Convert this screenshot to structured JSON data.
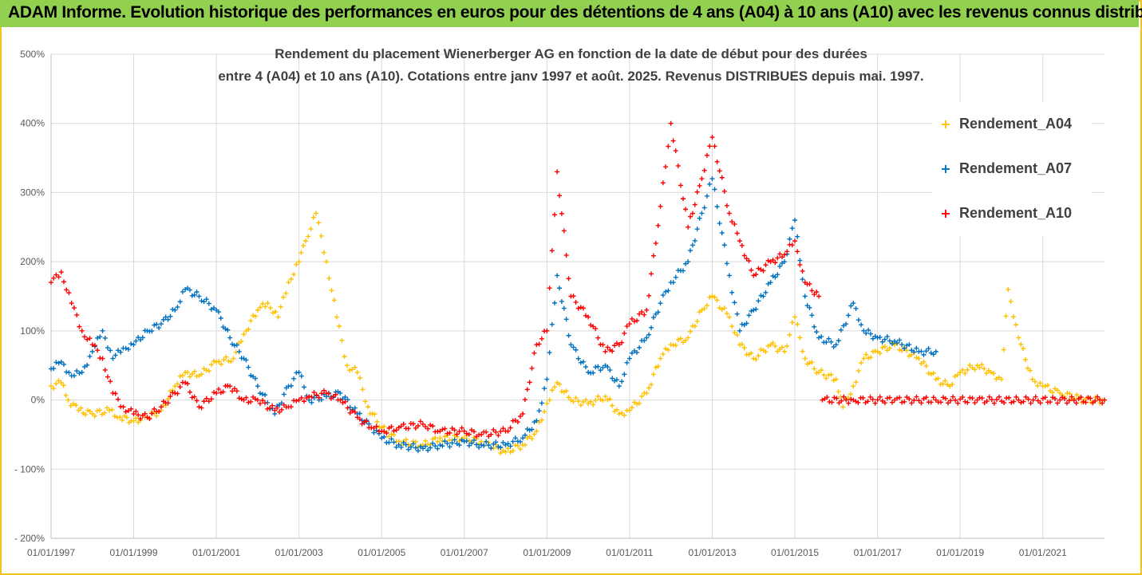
{
  "header": {
    "title": "ADAM Informe. Evolution historique des performances en euros pour des détentions de 4 ans (A04) à 10 ans (A10) avec les revenus connus distribués",
    "band_color": "#92d050",
    "border_color": "#f0c419"
  },
  "chart_data": {
    "type": "scatter",
    "title_lines": [
      "Rendement du placement Wienerberger AG en fonction de la date de début pour des durées",
      "entre 4 (A04) et 10 ans (A10). Cotations entre janv 1997 et août. 2025. Revenus DISTRIBUES depuis mai. 1997."
    ],
    "marker": "+",
    "grid": true,
    "legend_position": "right",
    "xlim": [
      "1997-01-01",
      "2022-06-30"
    ],
    "ylim": [
      -200,
      500
    ],
    "y_unit": "%",
    "x_ticks": [
      "01/01/1997",
      "01/01/1999",
      "01/01/2001",
      "01/01/2003",
      "01/01/2005",
      "01/01/2007",
      "01/01/2009",
      "01/01/2011",
      "01/01/2013",
      "01/01/2015",
      "01/01/2017",
      "01/01/2019",
      "01/01/2021"
    ],
    "y_ticks": [
      {
        "value": 500,
        "label": "500%"
      },
      {
        "value": 400,
        "label": "400%"
      },
      {
        "value": 300,
        "label": "300%"
      },
      {
        "value": 200,
        "label": "200%"
      },
      {
        "value": 100,
        "label": "100%"
      },
      {
        "value": 0,
        "label": "0%"
      },
      {
        "value": -100,
        "label": "- 100%"
      },
      {
        "value": -200,
        "label": "- 200%"
      }
    ],
    "series": [
      {
        "name": "Rendement_A04",
        "color": "#ffc000",
        "points": [
          [
            "1997-01-01",
            20
          ],
          [
            "1997-04-01",
            25
          ],
          [
            "1997-06-01",
            0
          ],
          [
            "1997-09-01",
            -15
          ],
          [
            "1998-01-01",
            -20
          ],
          [
            "1998-06-01",
            -15
          ],
          [
            "1998-09-01",
            -25
          ],
          [
            "1999-01-01",
            -30
          ],
          [
            "1999-05-01",
            -25
          ],
          [
            "1999-09-01",
            -15
          ],
          [
            "2000-01-01",
            20
          ],
          [
            "2000-04-01",
            40
          ],
          [
            "2000-08-01",
            35
          ],
          [
            "2001-01-01",
            55
          ],
          [
            "2001-06-01",
            60
          ],
          [
            "2001-09-01",
            95
          ],
          [
            "2002-01-01",
            130
          ],
          [
            "2002-04-01",
            140
          ],
          [
            "2002-07-01",
            120
          ],
          [
            "2002-10-01",
            170
          ],
          [
            "2003-01-01",
            200
          ],
          [
            "2003-03-01",
            230
          ],
          [
            "2003-06-01",
            270
          ],
          [
            "2003-09-01",
            200
          ],
          [
            "2003-12-01",
            120
          ],
          [
            "2004-03-01",
            50
          ],
          [
            "2004-06-01",
            40
          ],
          [
            "2004-09-01",
            -10
          ],
          [
            "2005-01-01",
            -40
          ],
          [
            "2005-06-01",
            -60
          ],
          [
            "2006-01-01",
            -65
          ],
          [
            "2006-06-01",
            -55
          ],
          [
            "2007-01-01",
            -55
          ],
          [
            "2007-06-01",
            -60
          ],
          [
            "2008-01-01",
            -75
          ],
          [
            "2008-06-01",
            -65
          ],
          [
            "2008-10-01",
            -45
          ],
          [
            "2009-01-01",
            -5
          ],
          [
            "2009-04-01",
            25
          ],
          [
            "2009-08-01",
            0
          ],
          [
            "2010-01-01",
            -5
          ],
          [
            "2010-06-01",
            5
          ],
          [
            "2010-10-01",
            -20
          ],
          [
            "2011-01-01",
            -15
          ],
          [
            "2011-06-01",
            10
          ],
          [
            "2011-10-01",
            60
          ],
          [
            "2012-01-01",
            80
          ],
          [
            "2012-06-01",
            90
          ],
          [
            "2012-10-01",
            130
          ],
          [
            "2013-01-01",
            150
          ],
          [
            "2013-06-01",
            120
          ],
          [
            "2013-09-01",
            80
          ],
          [
            "2014-01-01",
            60
          ],
          [
            "2014-06-01",
            80
          ],
          [
            "2014-10-01",
            70
          ],
          [
            "2015-01-01",
            120
          ],
          [
            "2015-04-01",
            60
          ],
          [
            "2015-08-01",
            40
          ],
          [
            "2016-01-01",
            30
          ],
          [
            "2016-03-01",
            -10
          ],
          [
            "2016-06-01",
            20
          ],
          [
            "2016-09-01",
            60
          ],
          [
            "2017-01-01",
            70
          ],
          [
            "2017-06-01",
            80
          ],
          [
            "2018-01-01",
            60
          ],
          [
            "2018-06-01",
            30
          ],
          [
            "2018-10-01",
            20
          ],
          [
            "2019-01-01",
            40
          ],
          [
            "2019-06-01",
            50
          ],
          [
            "2019-10-01",
            40
          ],
          [
            "2020-01-01",
            30
          ],
          [
            "2020-03-01",
            160
          ],
          [
            "2020-06-01",
            90
          ],
          [
            "2020-10-01",
            30
          ],
          [
            "2021-01-01",
            20
          ],
          [
            "2021-06-01",
            10
          ],
          [
            "2022-01-01",
            0
          ],
          [
            "2022-06-30",
            0
          ]
        ]
      },
      {
        "name": "Rendement_A07",
        "color": "#0070c0",
        "points": [
          [
            "1997-01-01",
            45
          ],
          [
            "1997-04-01",
            55
          ],
          [
            "1997-07-01",
            35
          ],
          [
            "1997-10-01",
            40
          ],
          [
            "1998-01-01",
            70
          ],
          [
            "1998-04-01",
            100
          ],
          [
            "1998-07-01",
            60
          ],
          [
            "1998-10-01",
            75
          ],
          [
            "1999-01-01",
            80
          ],
          [
            "1999-05-01",
            100
          ],
          [
            "1999-09-01",
            110
          ],
          [
            "2000-01-01",
            130
          ],
          [
            "2000-04-01",
            160
          ],
          [
            "2000-08-01",
            150
          ],
          [
            "2001-01-01",
            130
          ],
          [
            "2001-05-01",
            90
          ],
          [
            "2001-09-01",
            60
          ],
          [
            "2002-01-01",
            20
          ],
          [
            "2002-06-01",
            -20
          ],
          [
            "2002-10-01",
            20
          ],
          [
            "2003-01-01",
            40
          ],
          [
            "2003-04-01",
            0
          ],
          [
            "2003-09-01",
            5
          ],
          [
            "2004-01-01",
            10
          ],
          [
            "2004-06-01",
            -20
          ],
          [
            "2004-10-01",
            -40
          ],
          [
            "2005-01-01",
            -55
          ],
          [
            "2005-06-01",
            -65
          ],
          [
            "2006-01-01",
            -70
          ],
          [
            "2006-06-01",
            -65
          ],
          [
            "2007-01-01",
            -60
          ],
          [
            "2007-06-01",
            -65
          ],
          [
            "2008-01-01",
            -65
          ],
          [
            "2008-06-01",
            -55
          ],
          [
            "2008-10-01",
            -30
          ],
          [
            "2009-01-01",
            30
          ],
          [
            "2009-04-01",
            180
          ],
          [
            "2009-08-01",
            80
          ],
          [
            "2010-01-01",
            40
          ],
          [
            "2010-06-01",
            50
          ],
          [
            "2010-10-01",
            20
          ],
          [
            "2011-01-01",
            60
          ],
          [
            "2011-06-01",
            90
          ],
          [
            "2011-10-01",
            140
          ],
          [
            "2012-01-01",
            170
          ],
          [
            "2012-06-01",
            200
          ],
          [
            "2012-10-01",
            270
          ],
          [
            "2013-01-01",
            320
          ],
          [
            "2013-06-01",
            180
          ],
          [
            "2013-09-01",
            100
          ],
          [
            "2014-01-01",
            130
          ],
          [
            "2014-06-01",
            170
          ],
          [
            "2014-10-01",
            200
          ],
          [
            "2015-01-01",
            260
          ],
          [
            "2015-04-01",
            150
          ],
          [
            "2015-08-01",
            90
          ],
          [
            "2016-01-01",
            80
          ],
          [
            "2016-06-01",
            140
          ],
          [
            "2016-09-01",
            100
          ],
          [
            "2017-01-01",
            90
          ],
          [
            "2017-06-01",
            85
          ],
          [
            "2018-01-01",
            70
          ],
          [
            "2018-06-01",
            70
          ]
        ]
      },
      {
        "name": "Rendement_A10",
        "color": "#ff0000",
        "points": [
          [
            "1997-01-01",
            170
          ],
          [
            "1997-04-01",
            185
          ],
          [
            "1997-07-01",
            140
          ],
          [
            "1997-10-01",
            100
          ],
          [
            "1998-01-01",
            80
          ],
          [
            "1998-04-01",
            60
          ],
          [
            "1998-07-01",
            10
          ],
          [
            "1998-10-01",
            -10
          ],
          [
            "1999-01-01",
            -20
          ],
          [
            "1999-05-01",
            -25
          ],
          [
            "1999-09-01",
            -10
          ],
          [
            "2000-01-01",
            10
          ],
          [
            "2000-04-01",
            25
          ],
          [
            "2000-08-01",
            -10
          ],
          [
            "2001-01-01",
            10
          ],
          [
            "2001-05-01",
            20
          ],
          [
            "2001-09-01",
            0
          ],
          [
            "2002-01-01",
            0
          ],
          [
            "2002-06-01",
            -15
          ],
          [
            "2002-10-01",
            -10
          ],
          [
            "2003-01-01",
            0
          ],
          [
            "2003-04-01",
            5
          ],
          [
            "2003-09-01",
            10
          ],
          [
            "2004-01-01",
            0
          ],
          [
            "2004-06-01",
            -25
          ],
          [
            "2004-10-01",
            -40
          ],
          [
            "2005-01-01",
            -45
          ],
          [
            "2005-06-01",
            -40
          ],
          [
            "2006-01-01",
            -35
          ],
          [
            "2006-06-01",
            -45
          ],
          [
            "2007-01-01",
            -45
          ],
          [
            "2007-06-01",
            -50
          ],
          [
            "2008-01-01",
            -45
          ],
          [
            "2008-06-01",
            -20
          ],
          [
            "2008-10-01",
            80
          ],
          [
            "2009-01-01",
            100
          ],
          [
            "2009-04-01",
            330
          ],
          [
            "2009-08-01",
            150
          ],
          [
            "2010-01-01",
            120
          ],
          [
            "2010-06-01",
            70
          ],
          [
            "2010-10-01",
            80
          ],
          [
            "2011-01-01",
            110
          ],
          [
            "2011-06-01",
            130
          ],
          [
            "2011-10-01",
            280
          ],
          [
            "2012-01-01",
            400
          ],
          [
            "2012-06-01",
            250
          ],
          [
            "2012-10-01",
            320
          ],
          [
            "2013-01-01",
            380
          ],
          [
            "2013-06-01",
            270
          ],
          [
            "2013-09-01",
            230
          ],
          [
            "2014-01-01",
            180
          ],
          [
            "2014-06-01",
            200
          ],
          [
            "2014-10-01",
            210
          ],
          [
            "2015-01-01",
            230
          ],
          [
            "2015-04-01",
            170
          ],
          [
            "2015-08-01",
            150
          ],
          [
            "2015-09-01",
            0
          ],
          [
            "2016-06-01",
            0
          ],
          [
            "2017-06-01",
            0
          ],
          [
            "2018-06-01",
            0
          ],
          [
            "2019-06-01",
            0
          ],
          [
            "2020-06-01",
            0
          ],
          [
            "2021-06-01",
            0
          ],
          [
            "2022-06-30",
            0
          ]
        ]
      }
    ]
  }
}
